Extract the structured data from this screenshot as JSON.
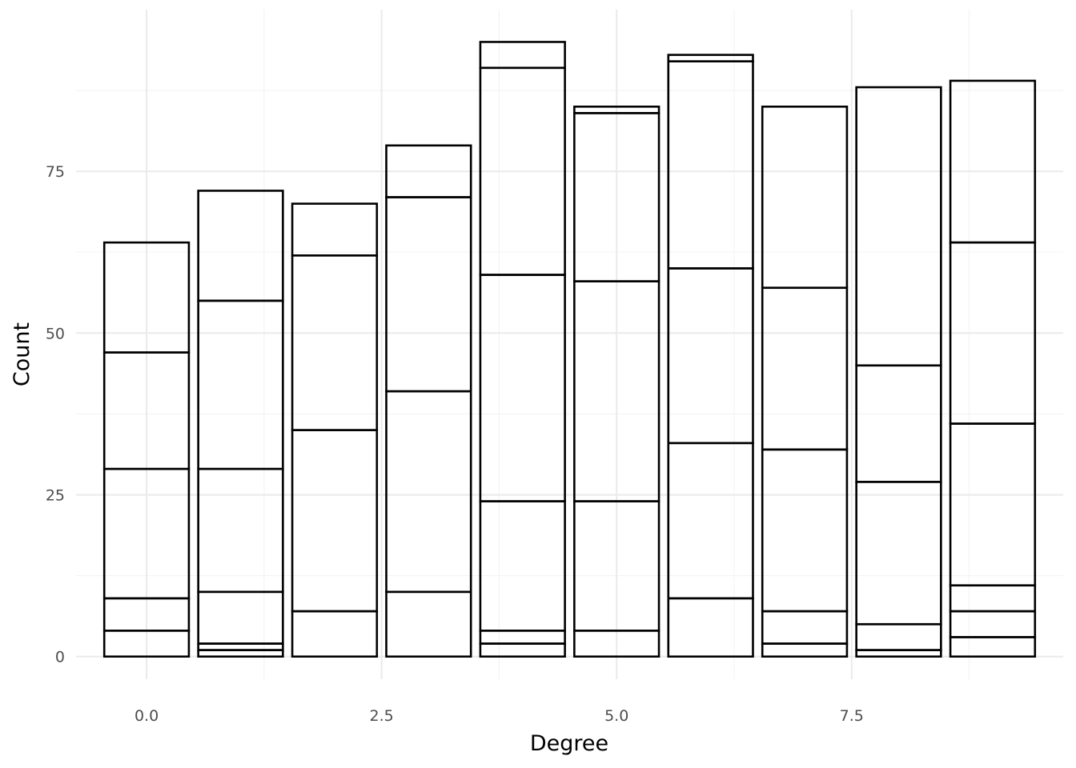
{
  "chart_data": {
    "type": "bar",
    "stacked": true,
    "title": "",
    "xlabel": "Degree",
    "ylabel": "Count",
    "x": [
      0,
      1,
      2,
      3,
      4,
      5,
      6,
      7,
      8,
      9
    ],
    "stacks": [
      [
        4,
        5,
        20,
        18,
        17
      ],
      [
        1,
        1,
        8,
        19,
        26,
        17
      ],
      [
        7,
        28,
        27,
        8
      ],
      [
        10,
        31,
        30,
        8
      ],
      [
        2,
        2,
        20,
        35,
        32,
        4
      ],
      [
        4,
        20,
        34,
        26,
        1
      ],
      [
        9,
        24,
        27,
        32,
        1
      ],
      [
        2,
        5,
        25,
        25,
        28
      ],
      [
        1,
        4,
        22,
        18,
        43
      ],
      [
        3,
        4,
        4,
        25,
        28,
        25
      ]
    ],
    "totals": [
      64,
      72,
      70,
      79,
      95,
      85,
      93,
      85,
      88,
      89
    ],
    "xlim": [
      -0.75,
      9.75
    ],
    "ylim": [
      -3.5,
      100
    ],
    "x_ticks": [
      0.0,
      2.5,
      5.0,
      7.5
    ],
    "x_tick_labels": [
      "0.0",
      "2.5",
      "5.0",
      "7.5"
    ],
    "y_ticks": [
      0,
      25,
      50,
      75
    ],
    "y_tick_labels": [
      "0",
      "25",
      "50",
      "75"
    ],
    "bar_fill": "none",
    "bar_outline": "#000000",
    "grid": true
  }
}
